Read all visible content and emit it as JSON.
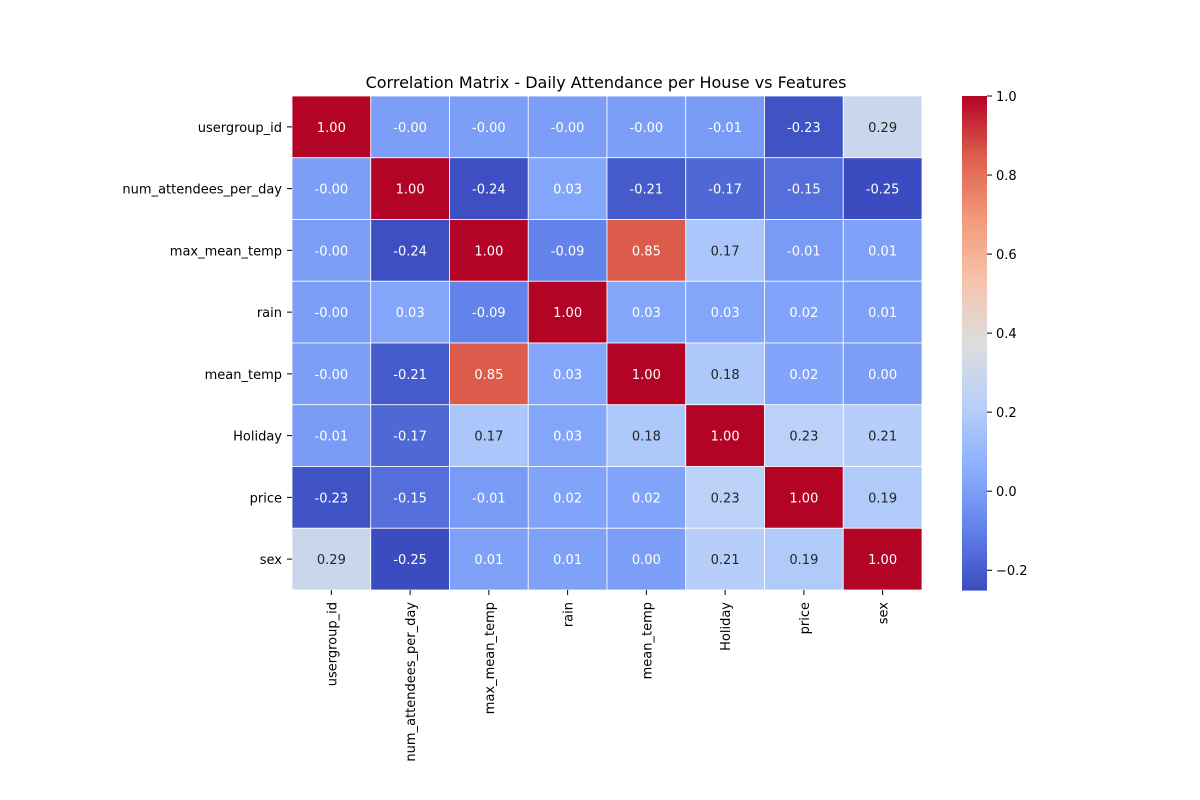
{
  "chart_data": {
    "type": "heatmap",
    "title": "Correlation Matrix - Daily Attendance per House vs Features",
    "rows": [
      "usergroup_id",
      "num_attendees_per_day",
      "max_mean_temp",
      "rain",
      "mean_temp",
      "Holiday",
      "price",
      "sex"
    ],
    "cols": [
      "usergroup_id",
      "num_attendees_per_day",
      "max_mean_temp",
      "rain",
      "mean_temp",
      "Holiday",
      "price",
      "sex"
    ],
    "values": [
      [
        1.0,
        -0.0,
        -0.0,
        -0.0,
        -0.0,
        -0.01,
        -0.23,
        0.29
      ],
      [
        -0.0,
        1.0,
        -0.24,
        0.03,
        -0.21,
        -0.17,
        -0.15,
        -0.25
      ],
      [
        -0.0,
        -0.24,
        1.0,
        -0.09,
        0.85,
        0.17,
        -0.01,
        0.01
      ],
      [
        -0.0,
        0.03,
        -0.09,
        1.0,
        0.03,
        0.03,
        0.02,
        0.01
      ],
      [
        -0.0,
        -0.21,
        0.85,
        0.03,
        1.0,
        0.18,
        0.02,
        0.0
      ],
      [
        -0.01,
        -0.17,
        0.17,
        0.03,
        0.18,
        1.0,
        0.23,
        0.21
      ],
      [
        -0.23,
        -0.15,
        -0.01,
        0.02,
        0.02,
        0.23,
        1.0,
        0.19
      ],
      [
        0.29,
        -0.25,
        0.01,
        0.01,
        0.0,
        0.21,
        0.19,
        1.0
      ]
    ],
    "labels": [
      [
        "1.00",
        "-0.00",
        "-0.00",
        "-0.00",
        "-0.00",
        "-0.01",
        "-0.23",
        "0.29"
      ],
      [
        "-0.00",
        "1.00",
        "-0.24",
        "0.03",
        "-0.21",
        "-0.17",
        "-0.15",
        "-0.25"
      ],
      [
        "-0.00",
        "-0.24",
        "1.00",
        "-0.09",
        "0.85",
        "0.17",
        "-0.01",
        "0.01"
      ],
      [
        "-0.00",
        "0.03",
        "-0.09",
        "1.00",
        "0.03",
        "0.03",
        "0.02",
        "0.01"
      ],
      [
        "-0.00",
        "-0.21",
        "0.85",
        "0.03",
        "1.00",
        "0.18",
        "0.02",
        "0.00"
      ],
      [
        "-0.01",
        "-0.17",
        "0.17",
        "0.03",
        "0.18",
        "1.00",
        "0.23",
        "0.21"
      ],
      [
        "-0.23",
        "-0.15",
        "-0.01",
        "0.02",
        "0.02",
        "0.23",
        "1.00",
        "0.19"
      ],
      [
        "0.29",
        "-0.25",
        "0.01",
        "0.01",
        "0.00",
        "0.21",
        "0.19",
        "1.00"
      ]
    ],
    "colormap": "coolwarm",
    "vmin": -0.25,
    "vmax": 1.0,
    "colorbar_ticks": [
      -0.2,
      0.0,
      0.2,
      0.4,
      0.6,
      0.8,
      1.0
    ],
    "colorbar_tick_labels": [
      "−0.2",
      "0.0",
      "0.2",
      "0.4",
      "0.6",
      "0.8",
      "1.0"
    ],
    "grid": false
  }
}
